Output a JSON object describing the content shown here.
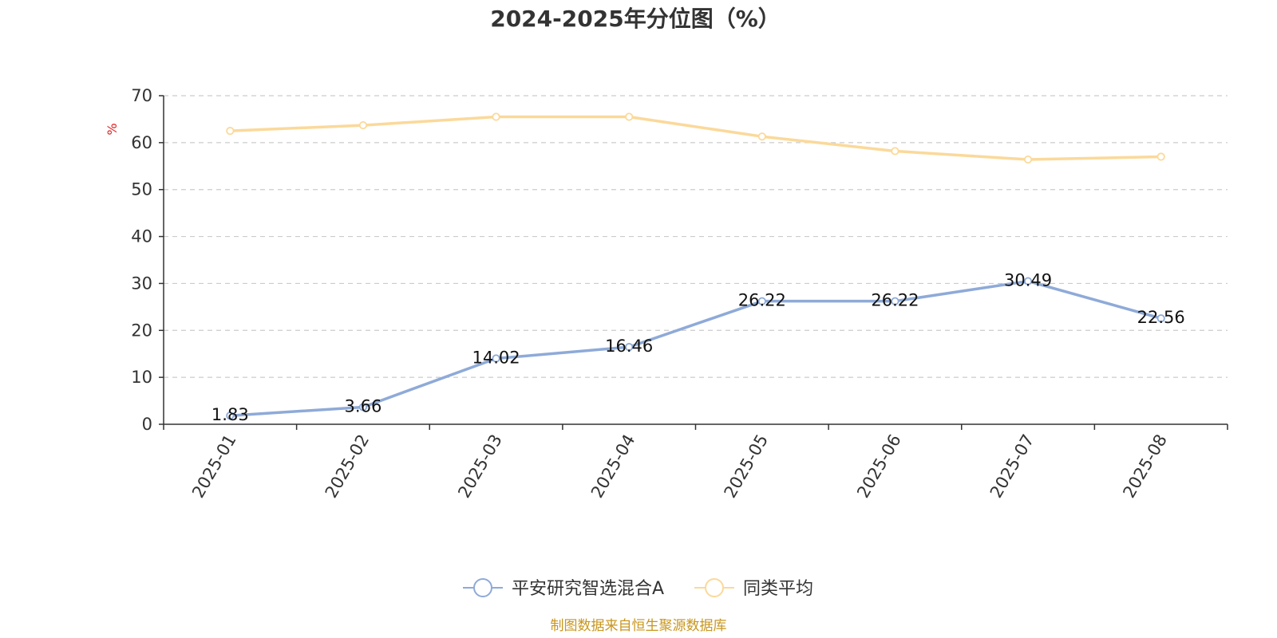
{
  "chart_data": {
    "type": "line",
    "title": "2024-2025年分位图（%）",
    "y_unit": "%",
    "categories": [
      "2025-01",
      "2025-02",
      "2025-03",
      "2025-04",
      "2025-05",
      "2025-06",
      "2025-07",
      "2025-08"
    ],
    "series": [
      {
        "name": "平安研究智选混合A",
        "values": [
          1.83,
          3.66,
          14.02,
          16.46,
          26.22,
          26.22,
          30.49,
          22.56
        ],
        "color": "#8eaad8",
        "show_labels": true
      },
      {
        "name": "同类平均",
        "values": [
          62.5,
          63.7,
          65.5,
          65.5,
          61.3,
          58.2,
          56.4,
          57.0
        ],
        "color": "#fbd99a",
        "show_labels": false
      }
    ],
    "ylim": [
      0,
      70
    ],
    "y_ticks": [
      0,
      10,
      20,
      30,
      40,
      50,
      60,
      70
    ],
    "grid": true,
    "legend_position": "bottom"
  },
  "colors": {
    "y_unit": "#e02020",
    "source": "#c8961e",
    "axis": "#333333",
    "grid": "#cccccc"
  },
  "source_note": "制图数据来自恒生聚源数据库"
}
